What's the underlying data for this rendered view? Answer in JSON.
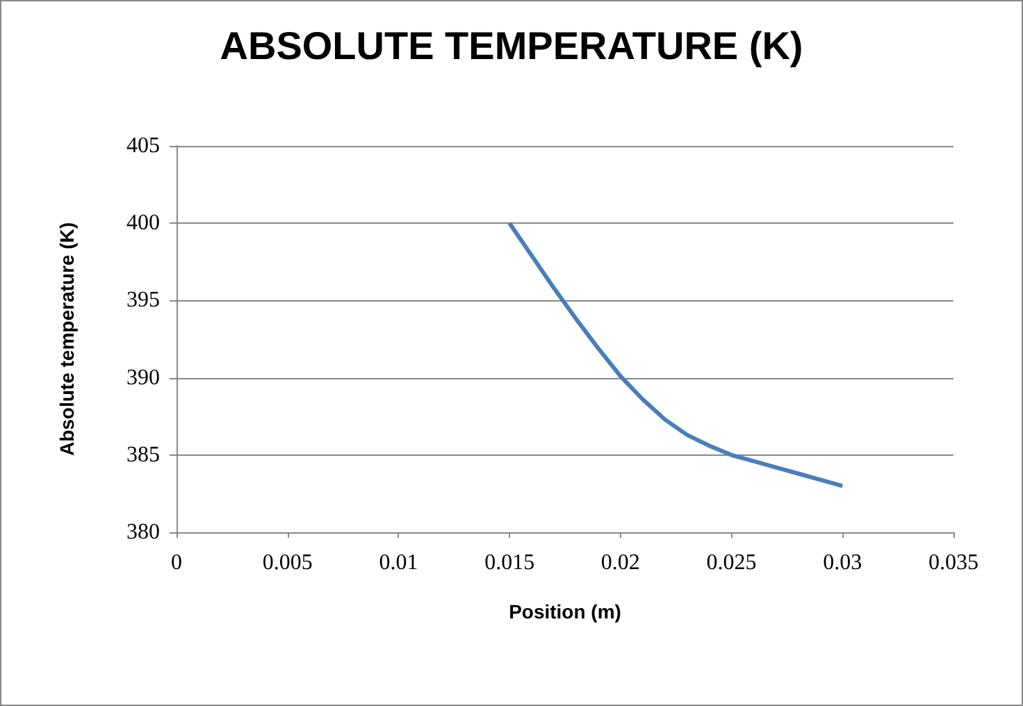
{
  "chart_data": {
    "type": "line",
    "title": "ABSOLUTE TEMPERATURE (K)",
    "xlabel": "Position (m)",
    "ylabel": "Absolute temperature (K)",
    "x": [
      0.015,
      0.016,
      0.017,
      0.018,
      0.019,
      0.02,
      0.021,
      0.022,
      0.023,
      0.024,
      0.025,
      0.026,
      0.027,
      0.028,
      0.029,
      0.03
    ],
    "series": [
      {
        "color": "#4a7ebb",
        "values": [
          400,
          397.9,
          395.8,
          393.8,
          391.9,
          390.1,
          388.6,
          387.3,
          386.3,
          385.6,
          385.0,
          384.6,
          384.2,
          383.8,
          383.4,
          383.0
        ]
      }
    ],
    "xlim": [
      0,
      0.035
    ],
    "xticks": [
      0,
      0.005,
      0.01,
      0.015,
      0.02,
      0.025,
      0.03,
      0.035
    ],
    "ylim": [
      380,
      405
    ],
    "yticks": [
      380,
      385,
      390,
      395,
      400,
      405
    ],
    "grid": "y",
    "marker": "none",
    "line_style": "solid"
  }
}
